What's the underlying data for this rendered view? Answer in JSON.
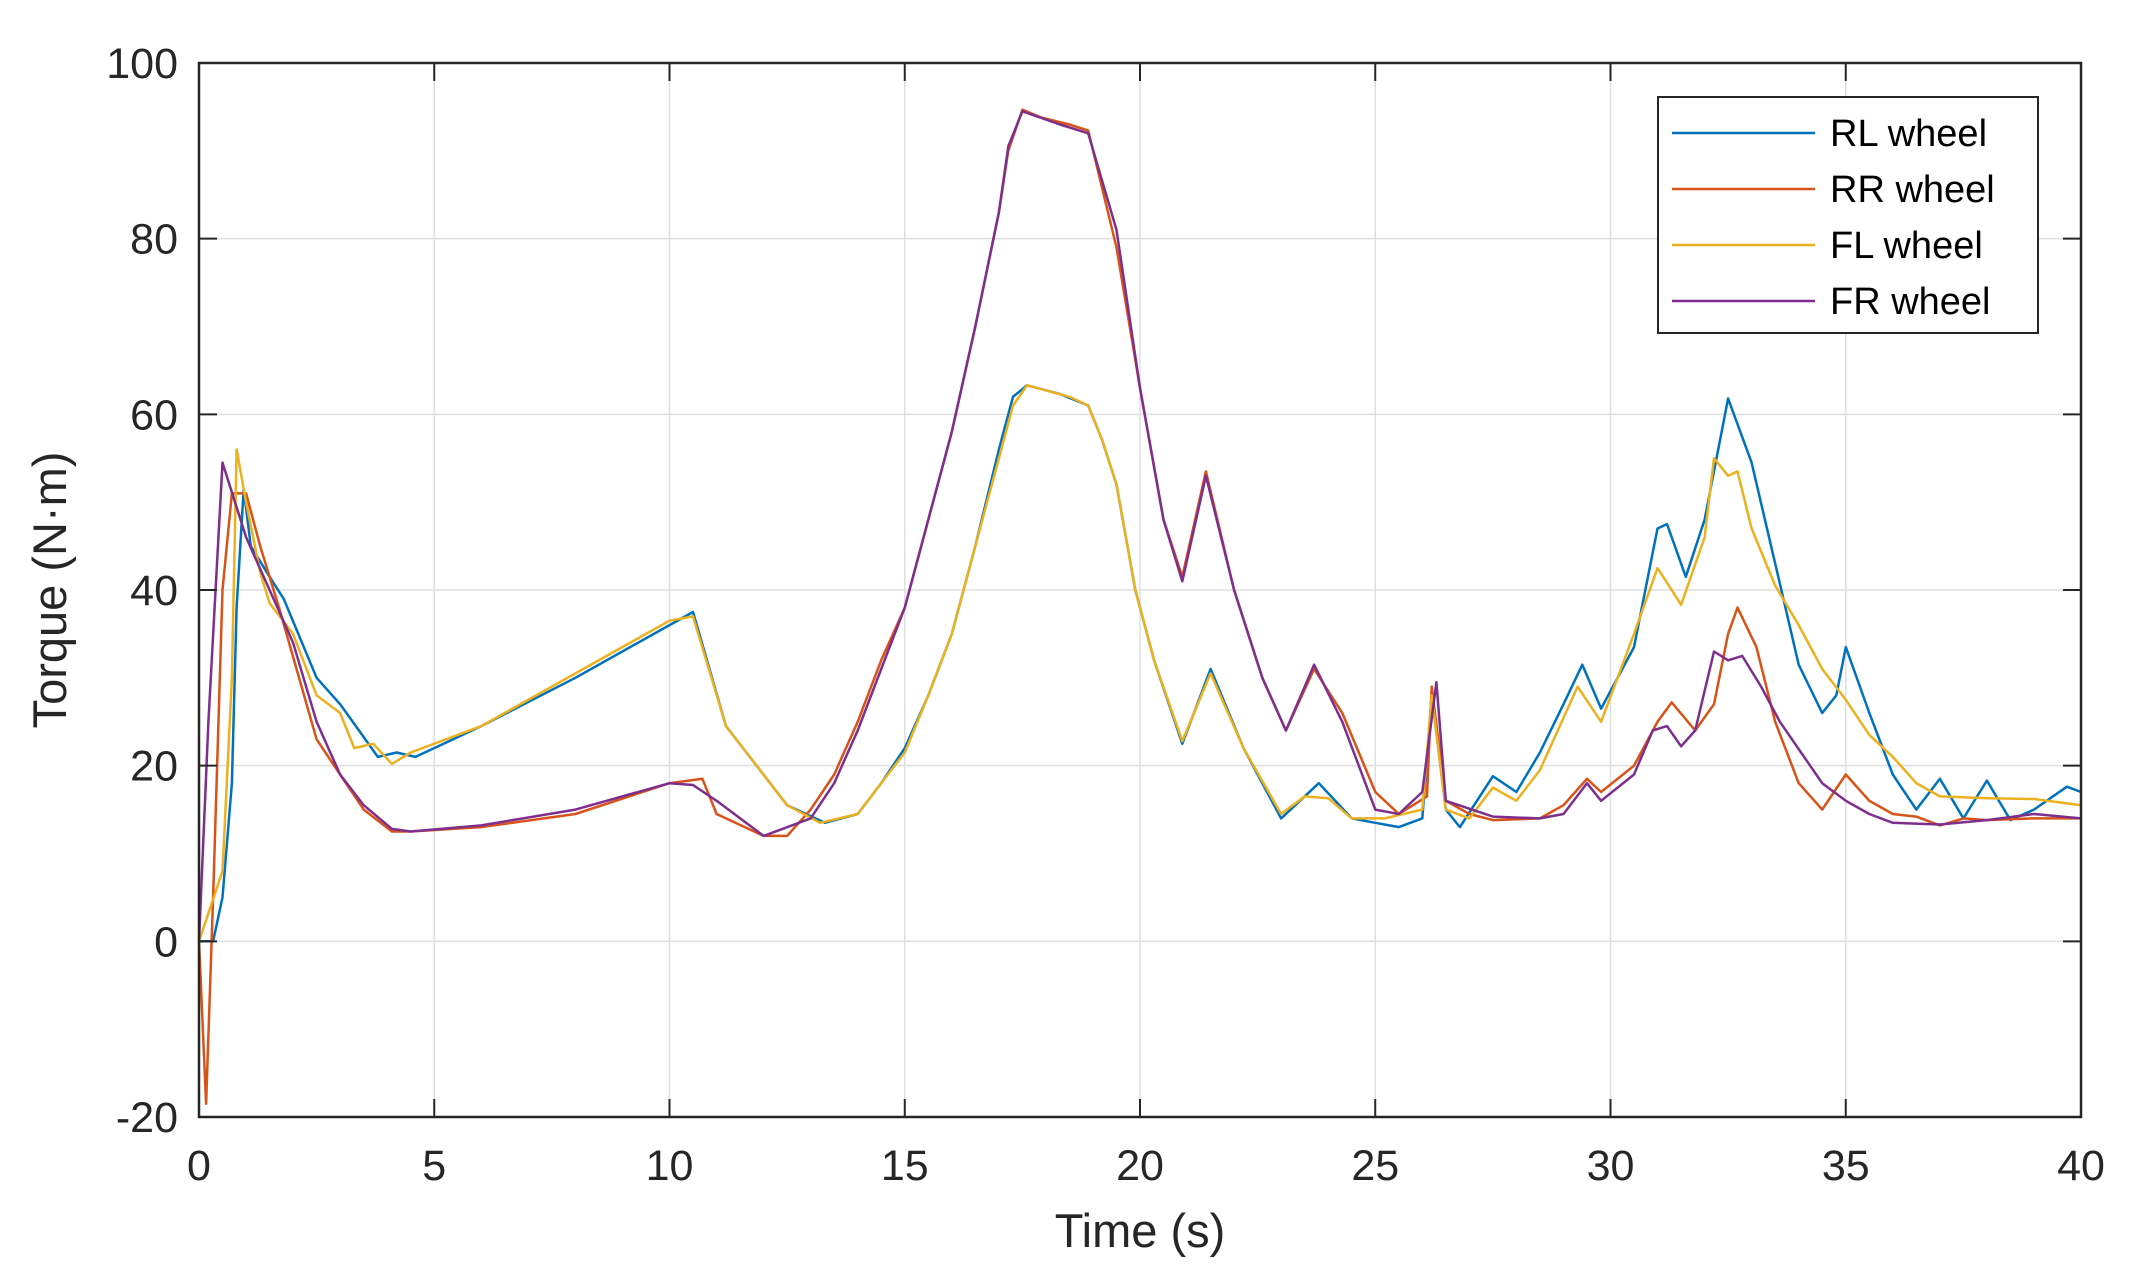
{
  "chart_data": {
    "type": "line",
    "title": "",
    "xlabel": "Time (s)",
    "ylabel": "Torque (N·m)",
    "xlim": [
      0,
      40
    ],
    "ylim": [
      -20,
      100
    ],
    "xticks": [
      0,
      5,
      10,
      15,
      20,
      25,
      30,
      35,
      40
    ],
    "yticks": [
      -20,
      0,
      20,
      40,
      60,
      80,
      100
    ],
    "xtick_labels": [
      "0",
      "5",
      "10",
      "15",
      "20",
      "25",
      "30",
      "35",
      "40"
    ],
    "ytick_labels": [
      "-20",
      "0",
      "20",
      "40",
      "60",
      "80",
      "100"
    ],
    "grid": true,
    "legend_position": "top-right",
    "series": [
      {
        "name": "RL wheel",
        "color": "#0072BD",
        "points": [
          [
            0,
            0
          ],
          [
            0.3,
            0
          ],
          [
            0.5,
            5
          ],
          [
            0.7,
            18
          ],
          [
            0.8,
            38
          ],
          [
            0.95,
            51.5
          ],
          [
            1.1,
            45
          ],
          [
            1.5,
            41.5
          ],
          [
            1.8,
            39
          ],
          [
            2.5,
            30
          ],
          [
            3,
            27
          ],
          [
            3.4,
            24
          ],
          [
            3.8,
            21
          ],
          [
            4.2,
            21.5
          ],
          [
            4.6,
            21
          ],
          [
            6,
            24.5
          ],
          [
            8,
            30
          ],
          [
            10,
            36
          ],
          [
            10.5,
            37.5
          ],
          [
            11.2,
            24.5
          ],
          [
            12.5,
            15.5
          ],
          [
            13.3,
            13.5
          ],
          [
            14,
            14.5
          ],
          [
            14.5,
            18
          ],
          [
            15,
            22
          ],
          [
            15.5,
            28
          ],
          [
            16,
            35
          ],
          [
            16.5,
            45
          ],
          [
            17,
            56
          ],
          [
            17.3,
            62
          ],
          [
            17.6,
            63.3
          ],
          [
            18.3,
            62.3
          ],
          [
            18.9,
            61
          ],
          [
            19.2,
            57
          ],
          [
            19.5,
            52
          ],
          [
            19.9,
            40
          ],
          [
            20.3,
            32
          ],
          [
            20.9,
            22.5
          ],
          [
            21.5,
            31
          ],
          [
            22.2,
            22
          ],
          [
            23,
            14
          ],
          [
            23.8,
            18
          ],
          [
            24.5,
            14
          ],
          [
            25,
            13.5
          ],
          [
            25.5,
            13
          ],
          [
            26,
            14
          ],
          [
            26.2,
            28
          ],
          [
            26.5,
            15
          ],
          [
            26.8,
            13
          ],
          [
            27.5,
            18.8
          ],
          [
            28,
            17
          ],
          [
            28.5,
            21.5
          ],
          [
            29,
            27
          ],
          [
            29.4,
            31.5
          ],
          [
            29.8,
            26.5
          ],
          [
            30.5,
            33.5
          ],
          [
            31,
            47
          ],
          [
            31.2,
            47.5
          ],
          [
            31.6,
            41.5
          ],
          [
            32,
            48
          ],
          [
            32.5,
            61.8
          ],
          [
            33,
            54.5
          ],
          [
            33.5,
            43
          ],
          [
            34,
            31.5
          ],
          [
            34.5,
            26
          ],
          [
            34.8,
            28
          ],
          [
            35,
            33.5
          ],
          [
            35.5,
            26
          ],
          [
            36,
            19
          ],
          [
            36.5,
            15
          ],
          [
            37,
            18.5
          ],
          [
            37.5,
            14
          ],
          [
            38,
            18.3
          ],
          [
            38.5,
            13.8
          ],
          [
            39,
            15
          ],
          [
            39.7,
            17.6
          ],
          [
            40,
            17
          ]
        ]
      },
      {
        "name": "RR wheel",
        "color": "#D95319",
        "points": [
          [
            0,
            0
          ],
          [
            0.15,
            -18.5
          ],
          [
            0.3,
            5
          ],
          [
            0.5,
            40
          ],
          [
            0.7,
            51
          ],
          [
            1,
            51
          ],
          [
            1.3,
            45
          ],
          [
            1.7,
            38
          ],
          [
            2.5,
            23
          ],
          [
            3,
            19
          ],
          [
            3.5,
            15
          ],
          [
            4.1,
            12.5
          ],
          [
            4.5,
            12.5
          ],
          [
            6,
            13
          ],
          [
            8,
            14.5
          ],
          [
            10,
            18
          ],
          [
            10.7,
            18.5
          ],
          [
            11,
            14.5
          ],
          [
            12,
            12
          ],
          [
            12.5,
            12
          ],
          [
            13,
            15
          ],
          [
            13.5,
            19
          ],
          [
            14,
            25
          ],
          [
            14.5,
            32
          ],
          [
            15,
            38
          ],
          [
            15.5,
            48
          ],
          [
            16,
            58
          ],
          [
            16.5,
            70
          ],
          [
            17,
            83
          ],
          [
            17.2,
            90
          ],
          [
            17.5,
            94.7
          ],
          [
            17.9,
            93.8
          ],
          [
            18.5,
            93
          ],
          [
            18.9,
            92.3
          ],
          [
            19.5,
            79
          ],
          [
            20,
            63
          ],
          [
            20.5,
            48
          ],
          [
            20.9,
            41.5
          ],
          [
            21.4,
            53.5
          ],
          [
            22,
            40
          ],
          [
            22.6,
            30
          ],
          [
            23.1,
            24
          ],
          [
            23.7,
            31
          ],
          [
            24.3,
            26
          ],
          [
            25,
            17
          ],
          [
            25.5,
            14.5
          ],
          [
            26.1,
            16.5
          ],
          [
            26.2,
            29
          ],
          [
            26.5,
            16
          ],
          [
            27,
            14.5
          ],
          [
            27.5,
            13.8
          ],
          [
            28.5,
            14
          ],
          [
            29,
            15.5
          ],
          [
            29.5,
            18.5
          ],
          [
            29.8,
            17
          ],
          [
            30.5,
            20
          ],
          [
            31,
            25
          ],
          [
            31.3,
            27.2
          ],
          [
            31.8,
            24
          ],
          [
            32.2,
            27
          ],
          [
            32.5,
            35
          ],
          [
            32.7,
            38
          ],
          [
            33.1,
            33.5
          ],
          [
            33.5,
            25
          ],
          [
            34,
            18
          ],
          [
            34.5,
            15
          ],
          [
            35,
            19
          ],
          [
            35.5,
            16
          ],
          [
            36,
            14.5
          ],
          [
            36.5,
            14.2
          ],
          [
            37,
            13.2
          ],
          [
            37.5,
            14
          ],
          [
            38,
            13.8
          ],
          [
            39,
            14
          ],
          [
            39.5,
            14
          ],
          [
            40,
            14
          ]
        ]
      },
      {
        "name": "FL wheel",
        "color": "#EDB120",
        "points": [
          [
            0,
            0
          ],
          [
            0.5,
            8
          ],
          [
            0.7,
            30
          ],
          [
            0.8,
            56
          ],
          [
            1,
            50
          ],
          [
            1.3,
            42
          ],
          [
            1.5,
            38.5
          ],
          [
            2,
            35
          ],
          [
            2.5,
            28
          ],
          [
            3,
            26
          ],
          [
            3.3,
            22
          ],
          [
            3.7,
            22.5
          ],
          [
            4.1,
            20.2
          ],
          [
            4.5,
            21.5
          ],
          [
            6,
            24.5
          ],
          [
            8,
            30.5
          ],
          [
            10,
            36.5
          ],
          [
            10.5,
            37
          ],
          [
            11.2,
            24.5
          ],
          [
            12.5,
            15.5
          ],
          [
            13.2,
            13.5
          ],
          [
            14,
            14.5
          ],
          [
            14.5,
            18
          ],
          [
            15,
            21.5
          ],
          [
            15.5,
            28
          ],
          [
            16,
            35
          ],
          [
            16.5,
            45
          ],
          [
            17,
            55
          ],
          [
            17.3,
            61
          ],
          [
            17.6,
            63.3
          ],
          [
            18.5,
            62
          ],
          [
            18.9,
            61
          ],
          [
            19.2,
            57
          ],
          [
            19.5,
            52
          ],
          [
            19.9,
            40
          ],
          [
            20.3,
            32
          ],
          [
            20.9,
            22.8
          ],
          [
            21.5,
            30.5
          ],
          [
            22.2,
            22
          ],
          [
            23,
            14.5
          ],
          [
            23.5,
            16.5
          ],
          [
            24,
            16.3
          ],
          [
            24.5,
            14
          ],
          [
            25.2,
            14
          ],
          [
            26,
            15
          ],
          [
            26.2,
            28
          ],
          [
            26.5,
            15
          ],
          [
            27,
            14
          ],
          [
            27.5,
            17.5
          ],
          [
            28,
            16
          ],
          [
            28.5,
            19.5
          ],
          [
            29.3,
            29
          ],
          [
            29.8,
            25
          ],
          [
            30.5,
            35
          ],
          [
            31,
            42.5
          ],
          [
            31.3,
            40
          ],
          [
            31.5,
            38.3
          ],
          [
            32,
            46
          ],
          [
            32.2,
            55
          ],
          [
            32.5,
            53
          ],
          [
            32.7,
            53.5
          ],
          [
            33,
            47
          ],
          [
            33.5,
            40.5
          ],
          [
            34,
            36
          ],
          [
            34.5,
            31
          ],
          [
            35,
            27.5
          ],
          [
            35.5,
            23.5
          ],
          [
            36,
            21
          ],
          [
            36.5,
            18
          ],
          [
            37,
            16.5
          ],
          [
            38,
            16.3
          ],
          [
            39,
            16.2
          ],
          [
            40,
            15.5
          ]
        ]
      },
      {
        "name": "FR wheel",
        "color": "#7E2F8E",
        "points": [
          [
            0,
            0
          ],
          [
            0.2,
            25
          ],
          [
            0.5,
            54.5
          ],
          [
            1,
            46
          ],
          [
            1.5,
            40
          ],
          [
            2,
            34
          ],
          [
            2.5,
            25
          ],
          [
            3,
            19
          ],
          [
            3.5,
            15.5
          ],
          [
            4.1,
            12.8
          ],
          [
            4.5,
            12.5
          ],
          [
            6,
            13.2
          ],
          [
            8,
            15
          ],
          [
            10,
            18
          ],
          [
            10.5,
            17.8
          ],
          [
            11,
            16
          ],
          [
            12,
            12
          ],
          [
            13,
            14
          ],
          [
            13.5,
            18
          ],
          [
            14,
            24
          ],
          [
            14.5,
            31
          ],
          [
            15,
            38
          ],
          [
            15.5,
            48
          ],
          [
            16,
            58
          ],
          [
            16.5,
            70
          ],
          [
            17,
            83
          ],
          [
            17.2,
            90.5
          ],
          [
            17.5,
            94.5
          ],
          [
            18.3,
            93
          ],
          [
            18.9,
            92
          ],
          [
            19.5,
            81
          ],
          [
            20,
            63
          ],
          [
            20.5,
            48
          ],
          [
            20.9,
            41
          ],
          [
            21.4,
            53
          ],
          [
            22,
            40
          ],
          [
            22.6,
            30
          ],
          [
            23.1,
            24
          ],
          [
            23.7,
            31.5
          ],
          [
            24.3,
            25
          ],
          [
            25,
            15
          ],
          [
            25.5,
            14.5
          ],
          [
            26,
            17
          ],
          [
            26.3,
            29.5
          ],
          [
            26.5,
            16
          ],
          [
            27.5,
            14.2
          ],
          [
            28.5,
            14
          ],
          [
            29,
            14.5
          ],
          [
            29.5,
            18
          ],
          [
            29.8,
            16
          ],
          [
            30.5,
            19
          ],
          [
            30.9,
            24
          ],
          [
            31.2,
            24.5
          ],
          [
            31.5,
            22.2
          ],
          [
            31.8,
            24
          ],
          [
            32.2,
            33
          ],
          [
            32.5,
            32
          ],
          [
            32.8,
            32.5
          ],
          [
            33.2,
            29
          ],
          [
            33.6,
            25
          ],
          [
            34.5,
            18
          ],
          [
            35,
            16
          ],
          [
            35.5,
            14.5
          ],
          [
            36,
            13.5
          ],
          [
            37,
            13.3
          ],
          [
            38,
            13.8
          ],
          [
            39,
            14.5
          ],
          [
            40,
            14
          ]
        ]
      }
    ]
  }
}
